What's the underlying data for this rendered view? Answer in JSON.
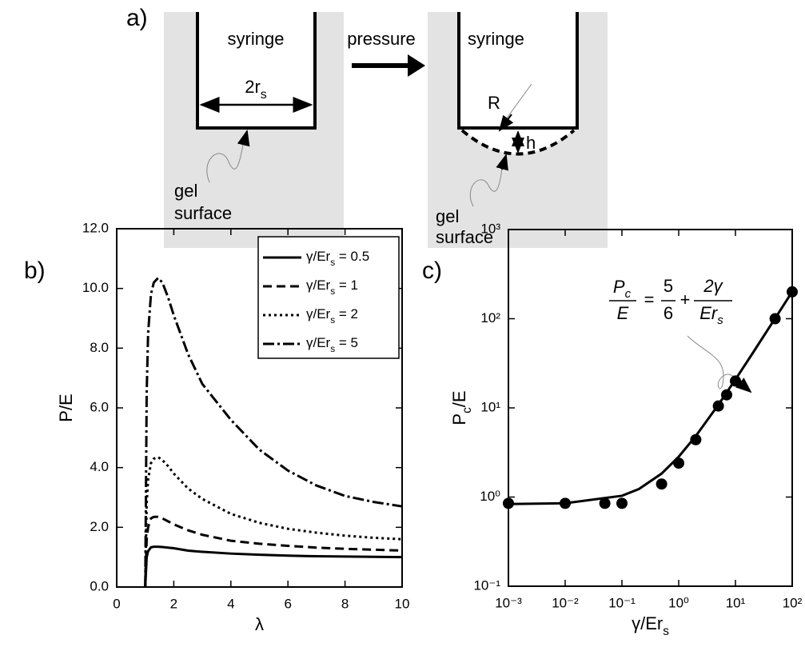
{
  "diagram": {
    "panel": "a)",
    "left": {
      "syringe": "syringe",
      "width_label": [
        "2r",
        "s"
      ],
      "gel": "gel",
      "surface": "surface"
    },
    "arrow": "pressure",
    "right": {
      "syringe": "syringe",
      "radius": "R",
      "height": "h",
      "gel": "gel",
      "surface": "surface"
    }
  },
  "chart_data": [
    {
      "type": "line",
      "panel": "b)",
      "xlabel": "λ",
      "ylabel": "P/E",
      "xlim": [
        0,
        10
      ],
      "ylim": [
        0,
        12
      ],
      "xticks": [
        0,
        2,
        4,
        6,
        8,
        10
      ],
      "yticks": [
        {
          "value": 0,
          "label": "0.0"
        },
        {
          "value": 2,
          "label": "2.0"
        },
        {
          "value": 4,
          "label": "4.0"
        },
        {
          "value": 6,
          "label": "6.0"
        },
        {
          "value": 8,
          "label": "8.0"
        },
        {
          "value": 10,
          "label": "10.0"
        },
        {
          "value": 12,
          "label": "12.0"
        }
      ],
      "legend": "upper right",
      "x": [
        1,
        1.05,
        1.1,
        1.2,
        1.3,
        1.45,
        1.6,
        1.8,
        2,
        2.5,
        3,
        4,
        5,
        6,
        7,
        8,
        9,
        10
      ],
      "series": [
        {
          "name": [
            "γ/Er",
            "s",
            " = 0.5"
          ],
          "color": "#000000",
          "style": "solid",
          "values": [
            0,
            1.0,
            1.2,
            1.33,
            1.35,
            1.35,
            1.34,
            1.32,
            1.3,
            1.22,
            1.18,
            1.12,
            1.08,
            1.05,
            1.03,
            1.02,
            1.01,
            1.0
          ]
        },
        {
          "name": [
            "γ/Er",
            "s",
            " = 1"
          ],
          "color": "#000000",
          "style": "dashed",
          "values": [
            0,
            1.6,
            2.0,
            2.3,
            2.35,
            2.35,
            2.3,
            2.2,
            2.1,
            1.9,
            1.75,
            1.55,
            1.45,
            1.38,
            1.32,
            1.28,
            1.25,
            1.22
          ]
        },
        {
          "name": [
            "γ/Er",
            "s",
            " = 2"
          ],
          "color": "#000000",
          "style": "dotted",
          "values": [
            0,
            2.8,
            3.6,
            4.15,
            4.3,
            4.35,
            4.25,
            4.05,
            3.8,
            3.3,
            2.95,
            2.45,
            2.15,
            1.95,
            1.82,
            1.72,
            1.65,
            1.6
          ]
        },
        {
          "name": [
            "γ/Er",
            "s",
            " = 5"
          ],
          "color": "#000000",
          "style": "dashdot",
          "values": [
            0,
            6.5,
            8.5,
            9.8,
            10.2,
            10.35,
            10.2,
            9.7,
            9.1,
            7.8,
            6.8,
            5.6,
            4.6,
            3.9,
            3.4,
            3.05,
            2.85,
            2.7
          ]
        }
      ]
    },
    {
      "type": "scatter",
      "panel": "c)",
      "xlabel": [
        "γ/Er",
        "s"
      ],
      "ylabel": [
        "P",
        "c",
        "/E"
      ],
      "xscale": "log",
      "yscale": "log",
      "xlim": [
        0.001,
        100
      ],
      "ylim": [
        0.1,
        1000
      ],
      "xticks": [
        {
          "value": 0.001,
          "label": "10⁻³"
        },
        {
          "value": 0.01,
          "label": "10⁻²"
        },
        {
          "value": 0.1,
          "label": "10⁻¹"
        },
        {
          "value": 1,
          "label": "10⁰"
        },
        {
          "value": 10,
          "label": "10¹"
        },
        {
          "value": 100,
          "label": "10²"
        }
      ],
      "yticks": [
        {
          "value": 0.1,
          "label": "10⁻¹"
        },
        {
          "value": 1,
          "label": "10⁰"
        },
        {
          "value": 10,
          "label": "10¹"
        },
        {
          "value": 100,
          "label": "10²"
        },
        {
          "value": 1000,
          "label": "10³"
        }
      ],
      "color": "#000000",
      "points": {
        "x": [
          0.001,
          0.01,
          0.05,
          0.1,
          0.5,
          1,
          2,
          5,
          7,
          10,
          50,
          100
        ],
        "values": [
          0.85,
          0.85,
          0.85,
          0.85,
          1.4,
          2.4,
          4.4,
          10.5,
          14,
          20,
          100,
          200
        ]
      },
      "fit": {
        "x": [
          0.001,
          0.01,
          0.1,
          0.2,
          0.5,
          1,
          2,
          5,
          10,
          20,
          50,
          100
        ],
        "values": [
          0.835,
          0.853,
          1.033,
          1.233,
          1.833,
          2.833,
          4.833,
          10.833,
          20.833,
          40.833,
          100.833,
          200.833
        ]
      },
      "equation": {
        "lhs_num": [
          "P",
          "c"
        ],
        "lhs_den": "E",
        "equals": "=",
        "t1_num": "5",
        "t1_den": "6",
        "plus": "+",
        "t2_num": "2γ",
        "t2_den": [
          "Er",
          "s"
        ]
      }
    }
  ]
}
